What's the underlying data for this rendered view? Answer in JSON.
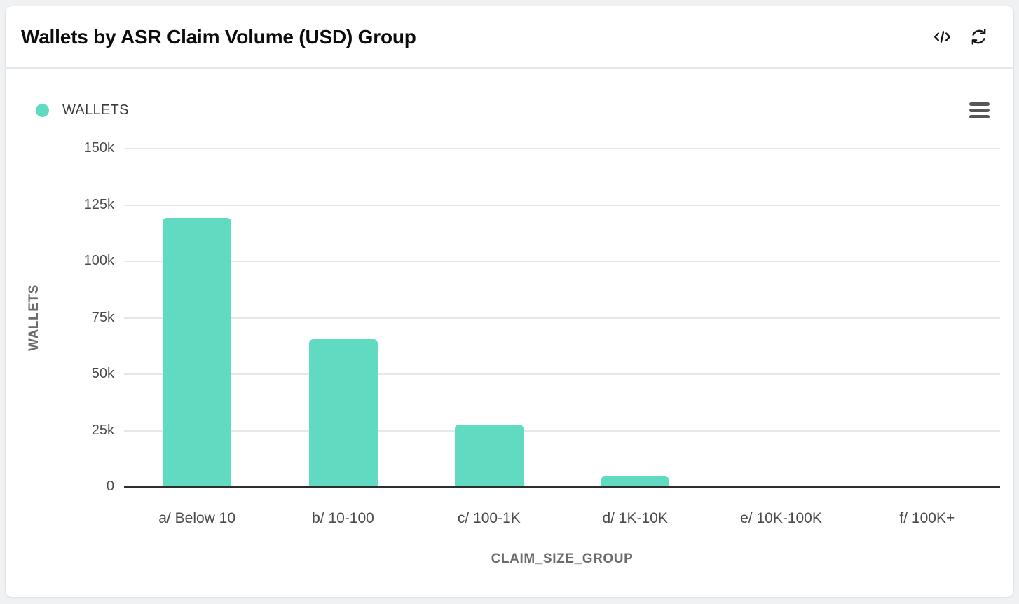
{
  "header": {
    "title": "Wallets by ASR Claim Volume (USD) Group",
    "icons": [
      {
        "name": "code-icon",
        "glyph": "</>"
      },
      {
        "name": "refresh-icon",
        "glyph": "⟳"
      }
    ]
  },
  "toolbar": {
    "menu_icon": "hamburger-menu-icon"
  },
  "legend": {
    "position": "top-left",
    "items": [
      {
        "label": "WALLETS",
        "color": "#60dbc2"
      }
    ]
  },
  "colors": {
    "bar_teal": "#60dbc2",
    "page_background": "#eff1f3",
    "card_background": "#ffffff",
    "card_border": "#e2e6eb",
    "gridline": "#e7e7e7",
    "axis_line": "#2e2e2e",
    "tick_text": "#4b4b4b",
    "axis_title_text": "#6b6b6b",
    "title_text": "#0c0c0d"
  },
  "chart_data": {
    "type": "bar",
    "title": "Wallets by ASR Claim Volume (USD) Group",
    "categories": [
      "a/ Below 10",
      "b/ 10-100",
      "c/ 100-1K",
      "d/ 1K-10K",
      "e/ 10K-100K",
      "f/ 100K+"
    ],
    "series": [
      {
        "name": "WALLETS",
        "color": "#60dbc2",
        "values": [
          119300,
          65500,
          27700,
          4700,
          400,
          150
        ]
      }
    ],
    "xlabel": "CLAIM_SIZE_GROUP",
    "ylabel": "WALLETS",
    "ylim": [
      0,
      150000
    ],
    "ytick_step": 25000,
    "ytick_labels": [
      "0",
      "25k",
      "50k",
      "75k",
      "100k",
      "125k",
      "150k"
    ],
    "grid": true,
    "legend_position": "top-left"
  }
}
